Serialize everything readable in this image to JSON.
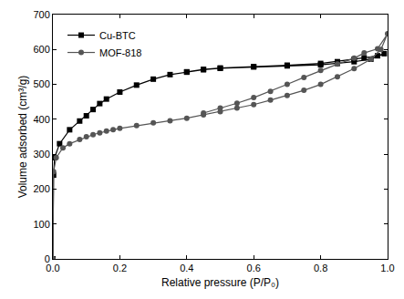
{
  "chart_data": {
    "type": "line",
    "x_label": "Relative pressure (P/P₀)",
    "y_label": "Volume adsorbed (cm³/g)",
    "xlim": [
      0,
      1
    ],
    "xticks": [
      {
        "value": 0,
        "label": "0.0"
      },
      {
        "value": 0.2,
        "label": "0.2"
      },
      {
        "value": 0.4,
        "label": "0.4"
      },
      {
        "value": 0.6,
        "label": "0.6"
      },
      {
        "value": 0.8,
        "label": "0.8"
      },
      {
        "value": 1,
        "label": "1.0"
      }
    ],
    "ylim": [
      0,
      700
    ],
    "yticks": [
      0,
      100,
      200,
      300,
      400,
      500,
      600,
      700
    ],
    "grid": false,
    "legend": "upper left",
    "series": [
      {
        "name": "Cu-BTC",
        "color": "#000000",
        "marker": "square",
        "line_style": "solid",
        "x": [
          0.0,
          0.002,
          0.005,
          0.02,
          0.05,
          0.08,
          0.1,
          0.12,
          0.14,
          0.16,
          0.2,
          0.25,
          0.3,
          0.35,
          0.4,
          0.45,
          0.5,
          0.6,
          0.7,
          0.8,
          0.85,
          0.9,
          0.95,
          0.99,
          0.97,
          0.93,
          0.9,
          0.85,
          0.8,
          0.7,
          0.6,
          0.5,
          0.45,
          0.4
        ],
        "values": [
          0,
          240,
          290,
          330,
          370,
          395,
          410,
          428,
          445,
          458,
          478,
          498,
          515,
          528,
          535,
          542,
          546,
          550,
          553,
          556,
          560,
          565,
          572,
          588,
          582,
          576,
          572,
          565,
          560,
          555,
          551,
          547,
          543,
          536
        ]
      },
      {
        "name": "MOF-818",
        "color": "#555555",
        "marker": "circle",
        "line_style": "solid",
        "x": [
          0.0,
          0.002,
          0.01,
          0.03,
          0.05,
          0.08,
          0.1,
          0.12,
          0.14,
          0.16,
          0.18,
          0.2,
          0.25,
          0.3,
          0.35,
          0.4,
          0.45,
          0.5,
          0.55,
          0.6,
          0.65,
          0.7,
          0.75,
          0.8,
          0.85,
          0.9,
          0.95,
          0.98,
          1.0,
          0.97,
          0.93,
          0.9,
          0.85,
          0.8,
          0.75,
          0.7,
          0.65,
          0.6,
          0.55,
          0.5,
          0.45
        ],
        "values": [
          0,
          250,
          290,
          318,
          330,
          342,
          350,
          356,
          361,
          366,
          370,
          374,
          382,
          390,
          396,
          403,
          413,
          422,
          432,
          442,
          455,
          468,
          483,
          500,
          522,
          545,
          572,
          600,
          645,
          602,
          590,
          575,
          558,
          540,
          520,
          500,
          480,
          462,
          446,
          432,
          418
        ]
      }
    ]
  }
}
